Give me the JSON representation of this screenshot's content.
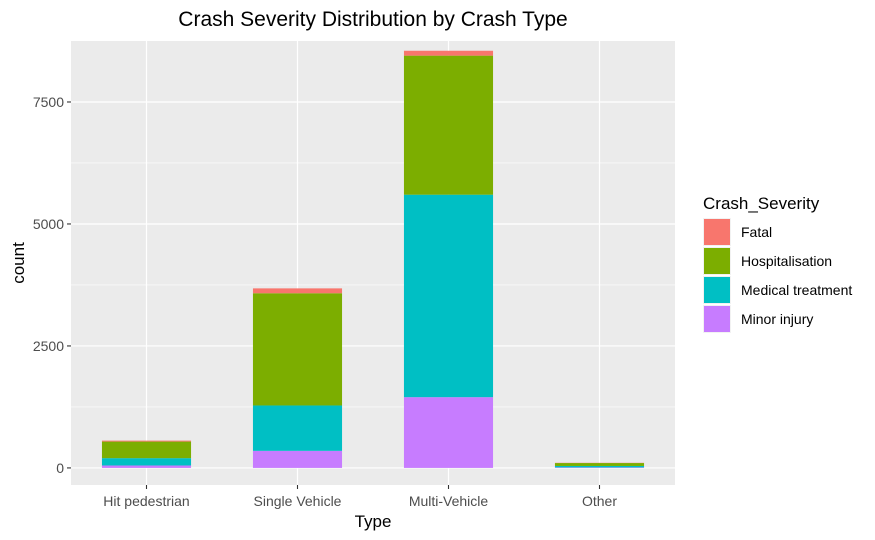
{
  "chart_data": {
    "type": "bar",
    "stacked": true,
    "title": "Crash Severity Distribution by Crash Type",
    "xlabel": "Type",
    "ylabel": "count",
    "categories": [
      "Hit pedestrian",
      "Single Vehicle",
      "Multi-Vehicle",
      "Other"
    ],
    "ylim": [
      -350,
      8750
    ],
    "yticks": [
      0,
      2500,
      5000,
      7500
    ],
    "ytick_labels": [
      "0",
      "2500",
      "5000",
      "7500"
    ],
    "grid": true,
    "legend": {
      "title": "Crash_Severity",
      "placement": "right"
    },
    "series": [
      {
        "name": "Minor injury",
        "color": "#C77CFF",
        "values": [
          50,
          350,
          1450,
          10
        ]
      },
      {
        "name": "Medical treatment",
        "color": "#00BFC4",
        "values": [
          150,
          930,
          4150,
          30
        ]
      },
      {
        "name": "Hospitalisation",
        "color": "#7CAE00",
        "values": [
          340,
          2300,
          2850,
          60
        ]
      },
      {
        "name": "Fatal",
        "color": "#F8766D",
        "values": [
          20,
          100,
          100,
          5
        ]
      }
    ],
    "legend_order": [
      "Fatal",
      "Hospitalisation",
      "Medical treatment",
      "Minor injury"
    ],
    "panel_background": "#EBEBEB"
  }
}
